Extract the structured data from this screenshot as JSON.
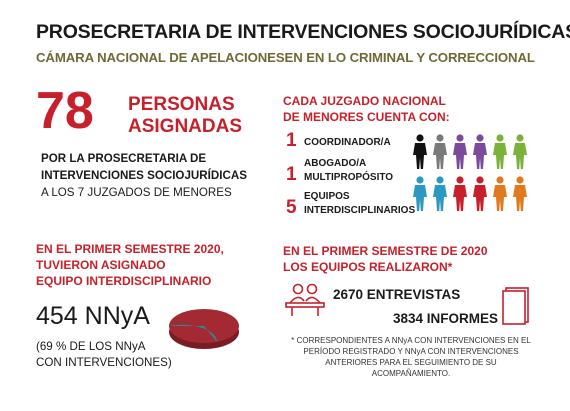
{
  "header": {
    "title": "PROSECRETARIA DE INTERVENCIONES SOCIOJURÍDICAS",
    "subtitle": "CÁMARA NACIONAL DE APELACIONESEN EN LO CRIMINAL Y CORRECCIONAL"
  },
  "left_top": {
    "count": "78",
    "label_line1": "PERSONAS",
    "label_line2": "ASIGNADAS",
    "desc_line1": "POR LA PROSECRETARIA  DE",
    "desc_line2": "INTERVENCIONES  SOCIOJURÍDICAS",
    "desc_line3": "A LOS 7 JUZGADOS DE MENORES"
  },
  "right_top": {
    "heading_line1": "CADA JUZGADO NACIONAL",
    "heading_line2": "DE MENORES CUENTA CON:",
    "items": [
      {
        "num": "1",
        "label_line1": "COORDINADOR/A",
        "label_line2": ""
      },
      {
        "num": "1",
        "label_line1": "ABOGADO/A",
        "label_line2": "MULTIPROPÓSITO"
      },
      {
        "num": "5",
        "label_line1": "EQUIPOS",
        "label_line2": "INTERDISCIPLINARIOS"
      }
    ],
    "people_colors": [
      "#111111",
      "#7a7a7a",
      "#7b4a9a",
      "#7b4a9a",
      "#7bb23a",
      "#7bb23a",
      "#2c9ac0",
      "#2c9ac0",
      "#c8202b",
      "#c8202b",
      "#e07a1f",
      "#e07a1f"
    ]
  },
  "left_bottom": {
    "heading_line1": "EN EL PRIMER SEMESTRE 2020,",
    "heading_line2": "TUVIERON ASIGNADO",
    "heading_line3": "EQUIPO INTERDISCIPLINARIO",
    "value": "454 NNyA",
    "percent_line1": "(69 % DE LOS NNyA",
    "percent_line2": "CON INTERVENCIONES)",
    "pie_share": 0.69,
    "pie_colors": {
      "main": "#a32a33",
      "rest": "#2b8a99"
    }
  },
  "right_bottom": {
    "heading_line1": "EN EL PRIMER SEMESTRE DE 2020",
    "heading_line2": "LOS EQUIPOS REALIZARON*",
    "interviews": "2670 ENTREVISTAS",
    "reports": "3834 INFORMES",
    "note_line1": "* CORRESPONDIENTES A NNyA CON INTERVENCIONES EN EL",
    "note_line2": "PERÍODO REGISTRADO Y NNyA CON INTERVENCIONES",
    "note_line3": "ANTERIORES PARA EL SEGUIMIENTO DE SU ACOMPAÑAMIENTO."
  },
  "colors": {
    "accent": "#c8202b",
    "subtitle": "#6f6a35"
  }
}
